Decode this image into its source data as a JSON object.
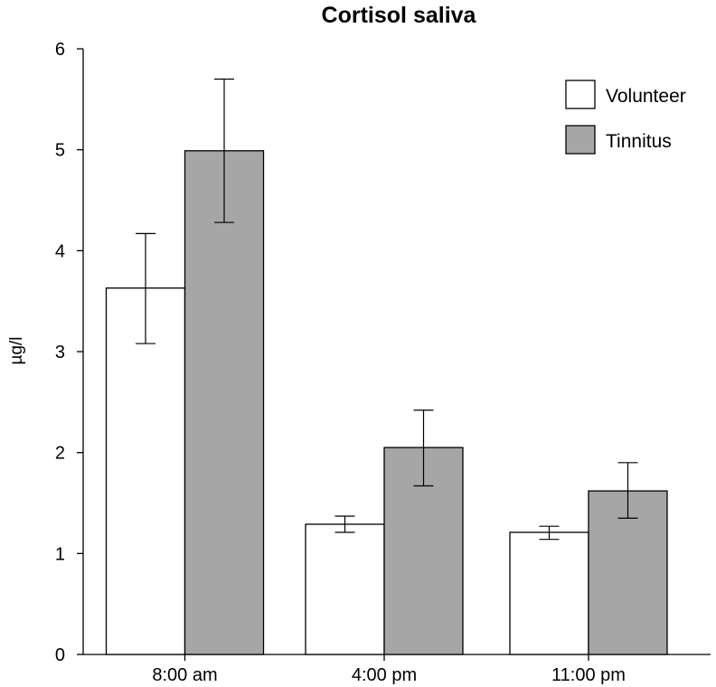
{
  "chart_data": {
    "type": "bar",
    "title": "Cortisol saliva",
    "xlabel": "",
    "ylabel": "µg/l",
    "ylim": [
      0,
      6
    ],
    "yticks": [
      0,
      1,
      2,
      3,
      4,
      5,
      6
    ],
    "categories": [
      "8:00 am",
      "4:00 pm",
      "11:00 pm"
    ],
    "series": [
      {
        "name": "Volunteer",
        "color": "#ffffff",
        "values": [
          3.63,
          1.29,
          1.21
        ],
        "error_low": [
          3.08,
          1.21,
          1.14
        ],
        "error_high": [
          4.17,
          1.37,
          1.27
        ]
      },
      {
        "name": "Tinnitus",
        "color": "#a6a6a6",
        "values": [
          4.99,
          2.05,
          1.62
        ],
        "error_low": [
          4.28,
          1.67,
          1.35
        ],
        "error_high": [
          5.7,
          2.42,
          1.9
        ]
      }
    ],
    "legend": "top-right",
    "grid": false
  }
}
